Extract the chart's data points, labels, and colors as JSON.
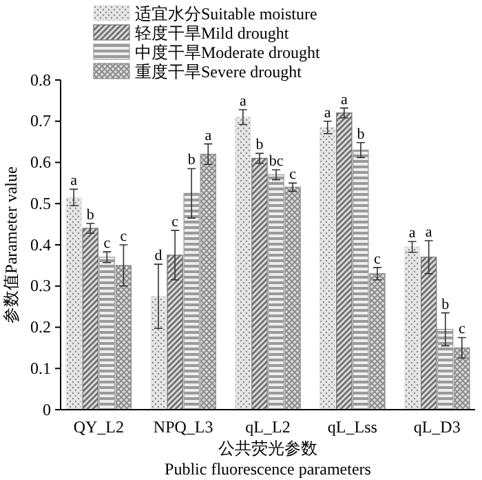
{
  "chart_data": {
    "type": "bar",
    "xlabel": "公共荧光参数\nPublic fluorescence parameters",
    "ylabel": "参数值Parameter value",
    "categories": [
      "QY_L2",
      "NPQ_L3",
      "qL_L2",
      "qL_Lss",
      "qL_D3"
    ],
    "series": [
      {
        "name": "适宜水分Suitable moisture",
        "color": "#e6e6e6",
        "values": [
          0.515,
          0.275,
          0.71,
          0.685,
          0.395
        ],
        "errors": [
          0.02,
          0.078,
          0.018,
          0.015,
          0.013
        ],
        "value_labels": [
          "a",
          "d",
          "a",
          "a",
          "a"
        ]
      },
      {
        "name": "轻度干旱Mild drought",
        "color": "#6e6e6e",
        "values": [
          0.44,
          0.375,
          0.61,
          0.72,
          0.37
        ],
        "errors": [
          0.012,
          0.06,
          0.012,
          0.012,
          0.04
        ],
        "value_labels": [
          "b",
          "c",
          "b",
          "a",
          "a"
        ]
      },
      {
        "name": "中度干旱Moderate drought",
        "color": "#9a9a9a",
        "values": [
          0.37,
          0.525,
          0.57,
          0.63,
          0.195
        ],
        "errors": [
          0.013,
          0.06,
          0.012,
          0.018,
          0.04
        ],
        "value_labels": [
          "c",
          "b",
          "bc",
          "b",
          "b"
        ]
      },
      {
        "name": "重度干旱Severe drought",
        "color": "#8c8c8c",
        "values": [
          0.35,
          0.62,
          0.54,
          0.33,
          0.15
        ],
        "errors": [
          0.05,
          0.025,
          0.01,
          0.015,
          0.025
        ],
        "value_labels": [
          "c",
          "a",
          "c",
          "c",
          "c"
        ]
      }
    ],
    "ylim": [
      0,
      0.8
    ],
    "yticks": [
      0,
      0.1,
      0.2,
      0.3,
      0.4,
      0.5,
      0.6,
      0.7,
      0.8
    ],
    "legend": "top",
    "grid": false
  }
}
